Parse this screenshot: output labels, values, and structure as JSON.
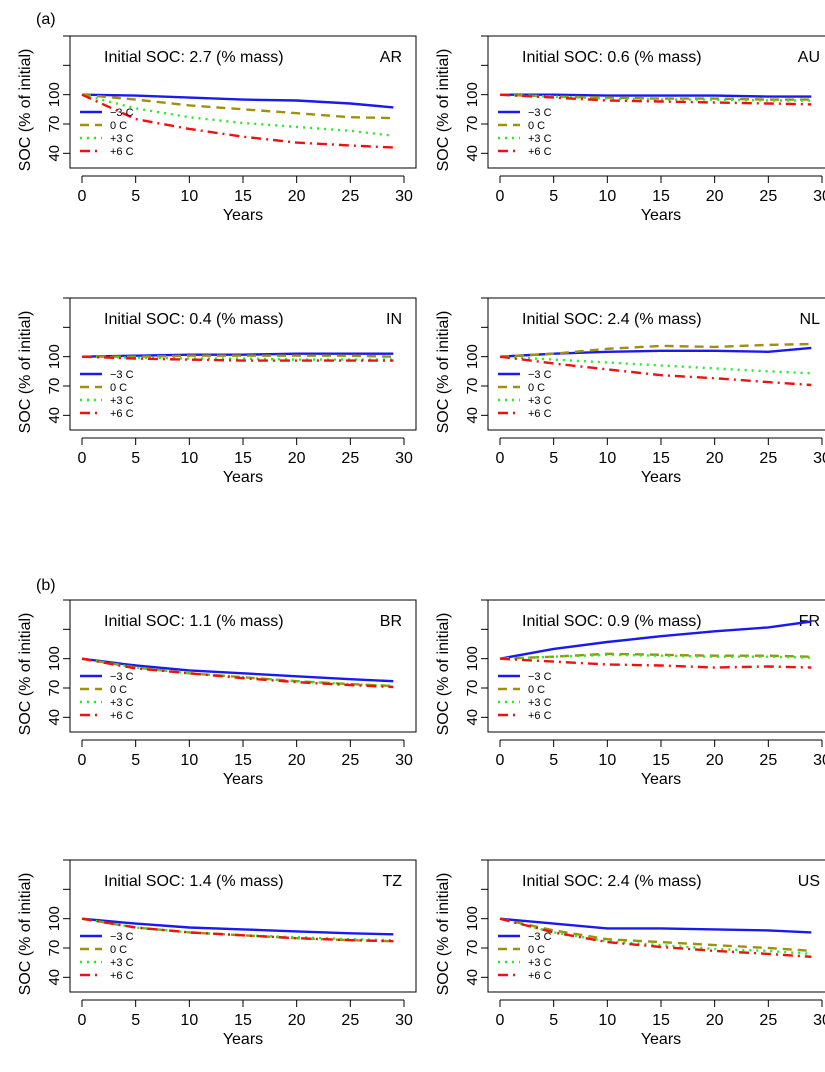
{
  "figure": {
    "section_labels": [
      "(a)",
      "(b)"
    ]
  },
  "common": {
    "xlabel": "Years",
    "ylabel": "SOC (% of initial)",
    "x_ticks": [
      "0",
      "5",
      "10",
      "15",
      "20",
      "25",
      "30"
    ],
    "y_ticks": [
      "40",
      "70",
      "100"
    ],
    "legend": [
      "−3 C",
      "0 C",
      "+3 C",
      "+6 C"
    ],
    "series_colors": [
      "#1a1aee",
      "#a09010",
      "#22ee22",
      "#ee1111"
    ],
    "series_styles": [
      "solid",
      "dashed",
      "dotted",
      "dashdot"
    ]
  },
  "chart_data": [
    {
      "type": "line",
      "title": "Initial SOC: 2.7 (% mass)",
      "site": "AR",
      "xlabel": "Years",
      "ylabel": "SOC (% of initial)",
      "x": [
        0,
        5,
        10,
        15,
        20,
        25,
        29
      ],
      "xlim": [
        0,
        30
      ],
      "ylim": [
        25,
        160
      ],
      "grid": false,
      "legend_position": "left",
      "series": [
        {
          "name": "−3 C",
          "values": [
            100,
            99,
            97,
            95,
            94,
            91,
            87
          ]
        },
        {
          "name": "0 C",
          "values": [
            100,
            95,
            89,
            85,
            81,
            77,
            76
          ]
        },
        {
          "name": "+3 C",
          "values": [
            100,
            86,
            77,
            71,
            67,
            63,
            58
          ]
        },
        {
          "name": "+6 C",
          "values": [
            100,
            75,
            65,
            57,
            51,
            48,
            46
          ]
        }
      ]
    },
    {
      "type": "line",
      "title": "Initial SOC: 0.6 (% mass)",
      "site": "AU",
      "xlabel": "Years",
      "ylabel": "SOC (% of initial)",
      "x": [
        0,
        5,
        10,
        15,
        20,
        25,
        29
      ],
      "xlim": [
        0,
        30
      ],
      "ylim": [
        25,
        160
      ],
      "grid": false,
      "legend_position": "left",
      "series": [
        {
          "name": "−3 C",
          "values": [
            100,
            100,
            99,
            99,
            99,
            98,
            98
          ]
        },
        {
          "name": "0 C",
          "values": [
            100,
            98,
            97,
            96,
            96,
            95,
            95
          ]
        },
        {
          "name": "+3 C",
          "values": [
            100,
            98,
            96,
            95,
            95,
            94,
            94
          ]
        },
        {
          "name": "+6 C",
          "values": [
            100,
            97,
            94,
            93,
            92,
            91,
            90
          ]
        }
      ]
    },
    {
      "type": "line",
      "title": "Initial SOC: 0.4 (% mass)",
      "site": "IN",
      "xlabel": "Years",
      "ylabel": "SOC (% of initial)",
      "x": [
        0,
        5,
        10,
        15,
        20,
        25,
        29
      ],
      "xlim": [
        0,
        30
      ],
      "ylim": [
        25,
        160
      ],
      "grid": false,
      "legend_position": "left",
      "series": [
        {
          "name": "−3 C",
          "values": [
            100,
            101,
            102,
            102,
            103,
            103,
            103
          ]
        },
        {
          "name": "0 C",
          "values": [
            100,
            100,
            101,
            101,
            101,
            101,
            100
          ]
        },
        {
          "name": "+3 C",
          "values": [
            100,
            99,
            98,
            98,
            97,
            97,
            97
          ]
        },
        {
          "name": "+6 C",
          "values": [
            100,
            98,
            97,
            96,
            96,
            96,
            96
          ]
        }
      ]
    },
    {
      "type": "line",
      "title": "Initial SOC: 2.4 (% mass)",
      "site": "NL",
      "xlabel": "Years",
      "ylabel": "SOC (% of initial)",
      "x": [
        0,
        5,
        10,
        15,
        20,
        25,
        29
      ],
      "xlim": [
        0,
        30
      ],
      "ylim": [
        25,
        160
      ],
      "grid": false,
      "legend_position": "left",
      "series": [
        {
          "name": "−3 C",
          "values": [
            100,
            103,
            105,
            106,
            106,
            105,
            109
          ]
        },
        {
          "name": "0 C",
          "values": [
            100,
            103,
            108,
            111,
            110,
            112,
            113
          ]
        },
        {
          "name": "+3 C",
          "values": [
            100,
            97,
            94,
            91,
            88,
            85,
            83
          ]
        },
        {
          "name": "+6 C",
          "values": [
            100,
            93,
            87,
            81,
            78,
            74,
            71
          ]
        }
      ]
    },
    {
      "type": "line",
      "title": "Initial SOC: 1.1 (% mass)",
      "site": "BR",
      "xlabel": "Years",
      "ylabel": "SOC (% of initial)",
      "x": [
        0,
        5,
        10,
        15,
        20,
        25,
        29
      ],
      "xlim": [
        0,
        30
      ],
      "ylim": [
        25,
        160
      ],
      "grid": false,
      "legend_position": "left",
      "series": [
        {
          "name": "−3 C",
          "values": [
            100,
            93,
            88,
            85,
            82,
            79,
            77
          ]
        },
        {
          "name": "0 C",
          "values": [
            100,
            91,
            85,
            81,
            77,
            74,
            72
          ]
        },
        {
          "name": "+3 C",
          "values": [
            100,
            91,
            85,
            81,
            77,
            74,
            72
          ]
        },
        {
          "name": "+6 C",
          "values": [
            100,
            90,
            85,
            80,
            76,
            73,
            71
          ]
        }
      ]
    },
    {
      "type": "line",
      "title": "Initial SOC: 0.9 (% mass)",
      "site": "FR",
      "xlabel": "Years",
      "ylabel": "SOC (% of initial)",
      "x": [
        0,
        5,
        10,
        15,
        20,
        25,
        29
      ],
      "xlim": [
        0,
        30
      ],
      "ylim": [
        25,
        160
      ],
      "grid": false,
      "legend_position": "left",
      "series": [
        {
          "name": "−3 C",
          "values": [
            100,
            110,
            117,
            123,
            128,
            132,
            138
          ]
        },
        {
          "name": "0 C",
          "values": [
            100,
            102,
            105,
            104,
            103,
            103,
            102
          ]
        },
        {
          "name": "+3 C",
          "values": [
            100,
            102,
            104,
            103,
            102,
            102,
            101
          ]
        },
        {
          "name": "+6 C",
          "values": [
            100,
            97,
            94,
            93,
            91,
            92,
            91
          ]
        }
      ]
    },
    {
      "type": "line",
      "title": "Initial SOC: 1.4 (% mass)",
      "site": "TZ",
      "xlabel": "Years",
      "ylabel": "SOC (% of initial)",
      "x": [
        0,
        5,
        10,
        15,
        20,
        25,
        29
      ],
      "xlim": [
        0,
        30
      ],
      "ylim": [
        25,
        160
      ],
      "grid": false,
      "legend_position": "left",
      "series": [
        {
          "name": "−3 C",
          "values": [
            100,
            95,
            91,
            89,
            87,
            85,
            84
          ]
        },
        {
          "name": "0 C",
          "values": [
            100,
            91,
            86,
            83,
            80,
            78,
            77
          ]
        },
        {
          "name": "+3 C",
          "values": [
            100,
            91,
            86,
            83,
            81,
            79,
            78
          ]
        },
        {
          "name": "+6 C",
          "values": [
            100,
            91,
            86,
            83,
            80,
            78,
            77
          ]
        }
      ]
    },
    {
      "type": "line",
      "title": "Initial SOC: 2.4 (% mass)",
      "site": "US",
      "xlabel": "Years",
      "ylabel": "SOC (% of initial)",
      "x": [
        0,
        5,
        10,
        15,
        20,
        25,
        29
      ],
      "xlim": [
        0,
        30
      ],
      "ylim": [
        25,
        160
      ],
      "grid": false,
      "legend_position": "left",
      "series": [
        {
          "name": "−3 C",
          "values": [
            100,
            95,
            90,
            90,
            89,
            88,
            86
          ]
        },
        {
          "name": "0 C",
          "values": [
            100,
            88,
            79,
            76,
            73,
            70,
            67
          ]
        },
        {
          "name": "+3 C",
          "values": [
            100,
            86,
            77,
            73,
            69,
            67,
            64
          ]
        },
        {
          "name": "+6 C",
          "values": [
            100,
            86,
            76,
            71,
            67,
            64,
            61
          ]
        }
      ]
    }
  ]
}
